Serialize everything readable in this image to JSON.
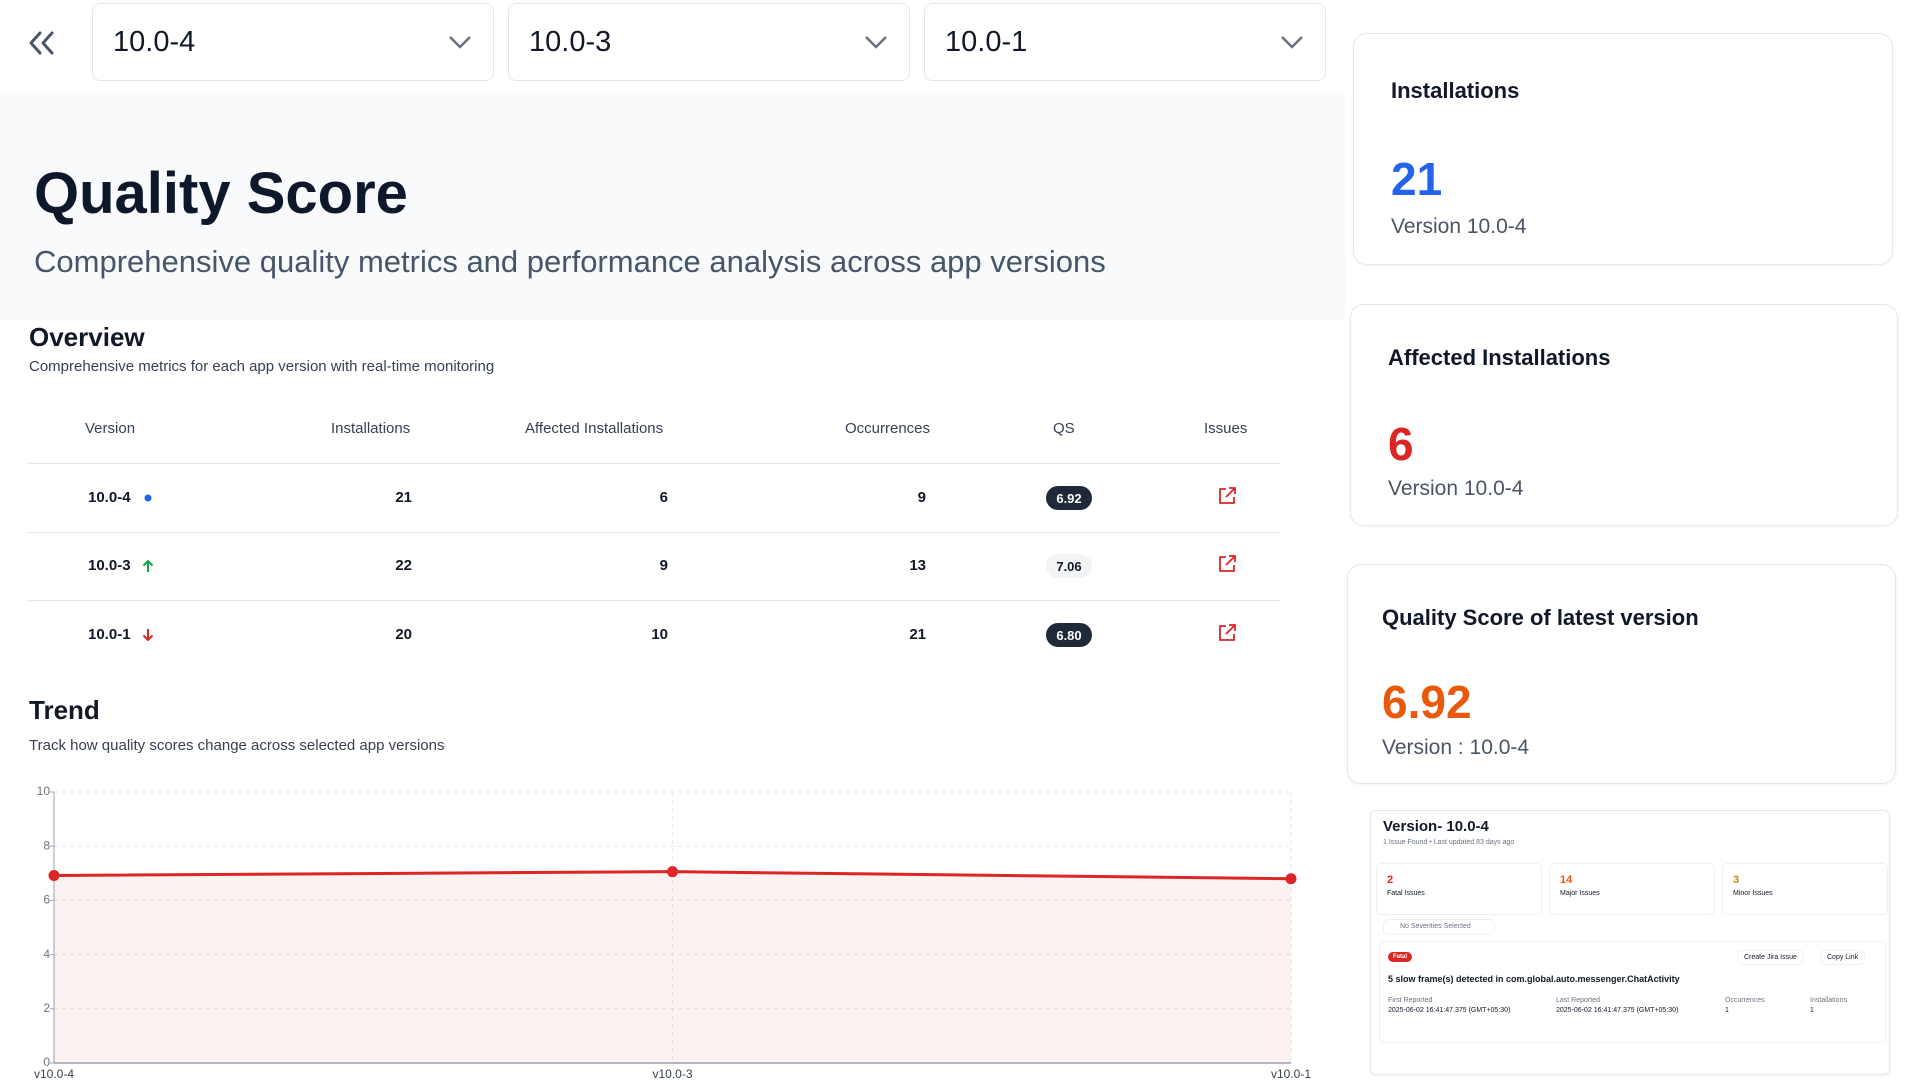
{
  "selectors": [
    "10.0-4",
    "10.0-3",
    "10.0-1"
  ],
  "header": {
    "title": "Quality Score",
    "subtitle": "Comprehensive quality metrics and performance analysis across app versions"
  },
  "overview": {
    "title": "Overview",
    "subtitle": "Comprehensive metrics for each app version with real-time monitoring",
    "columns": [
      "Version",
      "Installations",
      "Affected Installations",
      "Occurrences",
      "QS",
      "Issues"
    ],
    "rows": [
      [
        "10.0-4",
        21,
        6,
        9,
        "6.92"
      ],
      [
        "10.0-3",
        22,
        9,
        13,
        "7.06"
      ],
      [
        "10.0-1",
        20,
        10,
        21,
        "6.80"
      ]
    ]
  },
  "chart_data": {
    "type": "line",
    "title": "Trend",
    "subtitle": "Track how quality scores change across selected app versions",
    "categories": [
      "v10.0-4",
      "v10.0-3",
      "v10.0-1"
    ],
    "values": [
      6.92,
      7.06,
      6.8
    ],
    "color": "#dc2626",
    "ylim": [
      0,
      10
    ],
    "yticks": [
      0,
      2,
      4,
      6,
      8,
      10
    ],
    "grid": true
  },
  "cards": [
    {
      "title": "Installations",
      "value": "21",
      "caption": "Version 10.0-4"
    },
    {
      "title": "Affected Installations",
      "value": "6",
      "caption": "Version 10.0-4"
    },
    {
      "title": "Quality Score of latest version",
      "value": "6.92",
      "caption": "Version : 10.0-4"
    }
  ],
  "issues_panel": {
    "title": "Version- 10.0-4",
    "meta": "1 Issue Found • Last updated 83 days ago",
    "counts": [
      {
        "value": "2",
        "label": "Fatal Issues"
      },
      {
        "value": "14",
        "label": "Major Issues"
      },
      {
        "value": "3",
        "label": "Minor Issues"
      }
    ],
    "filter": "No Severities Selected",
    "issue": {
      "severity": "Fatal",
      "actions": [
        "Create Jira Issue",
        "Copy Link"
      ],
      "title": "5 slow frame(s) detected in com.global.auto.messenger.ChatActivity",
      "fields": [
        {
          "label": "First Reported",
          "value": "2025-06-02 16:41:47.375 (GMT+05:30)"
        },
        {
          "label": "Last Reported",
          "value": "2025-06-02 16:41:47.375 (GMT+05:30)"
        },
        {
          "label": "Occurrences",
          "value": "1"
        },
        {
          "label": "Installations",
          "value": "1"
        }
      ]
    }
  }
}
